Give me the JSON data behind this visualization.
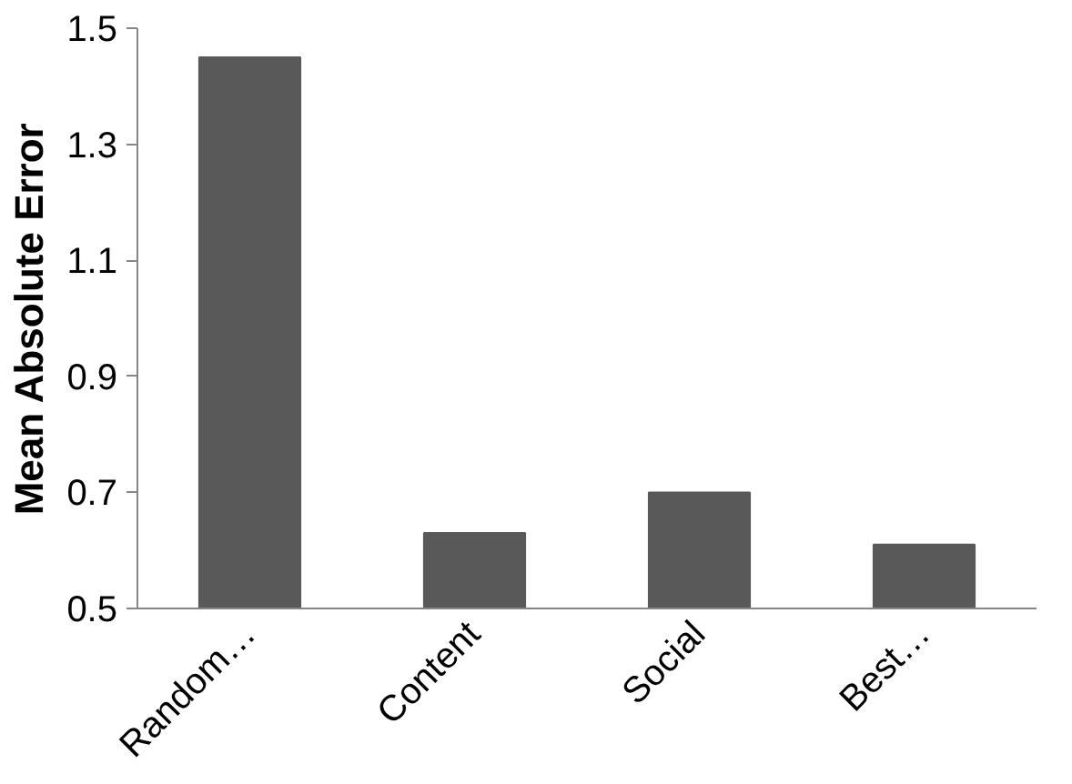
{
  "chart_data": {
    "type": "bar",
    "ylabel": "Mean Absolute Error",
    "categories": [
      "Random…",
      "Content",
      "Social",
      "Best…"
    ],
    "values": [
      1.45,
      0.63,
      0.7,
      0.61
    ],
    "color": "#595959",
    "ylim": [
      0.5,
      1.5
    ],
    "yticks": [
      0.5,
      0.7,
      0.9,
      1.1,
      1.3,
      1.5
    ],
    "grid": false
  }
}
